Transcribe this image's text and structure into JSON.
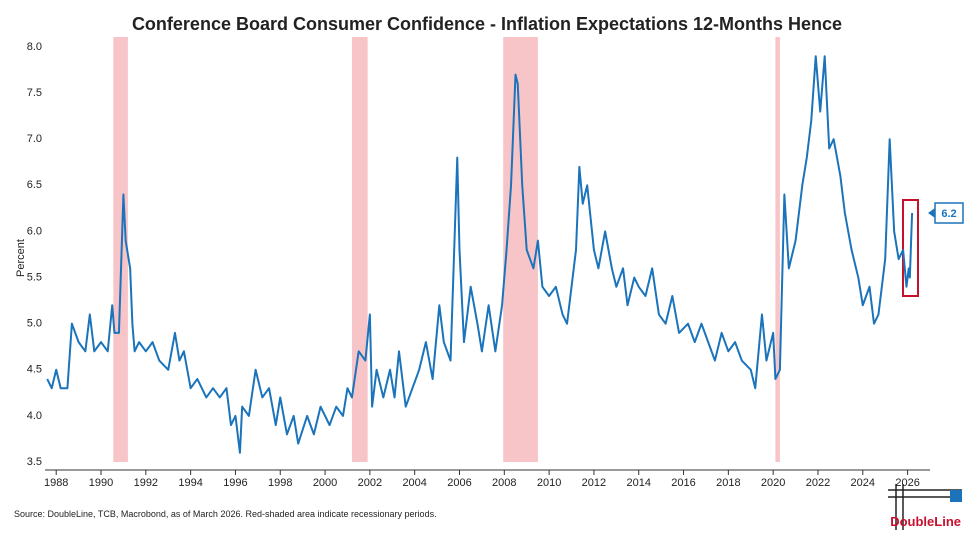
{
  "chart_data": {
    "type": "line",
    "title": "Conference Board Consumer Confidence - Inflation Expectations 12-Months Hence",
    "y_label": "Percent",
    "source": "Source: DoubleLine, TCB, Macrobond, as of March 2026. Red-shaded area indicate recessionary periods.",
    "brand": "DoubleLine",
    "xlim": [
      1987.5,
      2027
    ],
    "ylim": [
      3.5,
      8.0
    ],
    "xticks": [
      1988,
      1990,
      1992,
      1994,
      1996,
      1998,
      2000,
      2002,
      2004,
      2006,
      2008,
      2010,
      2012,
      2014,
      2016,
      2018,
      2020,
      2022,
      2024,
      2026
    ],
    "yticks": [
      3.5,
      {
        "value": 4,
        "label": "4.0"
      },
      4.5,
      {
        "value": 5,
        "label": "5.0"
      },
      5.5,
      {
        "value": 6,
        "label": "6.0"
      },
      6.5,
      {
        "value": 7,
        "label": "7.0"
      },
      7.5,
      {
        "value": 8,
        "label": "8.0"
      }
    ],
    "recession_color": "#f7c5c8",
    "recessions": [
      [
        1990.55,
        1991.2
      ],
      [
        2001.2,
        2001.9
      ],
      [
        2007.95,
        2009.5
      ],
      [
        2020.1,
        2020.3
      ]
    ],
    "x": [
      1987.6,
      1987.8,
      1988.0,
      1988.2,
      1988.5,
      1988.7,
      1989.0,
      1989.3,
      1989.5,
      1989.7,
      1990.0,
      1990.3,
      1990.5,
      1990.6,
      1990.8,
      1991.0,
      1991.1,
      1991.3,
      1991.4,
      1991.5,
      1991.7,
      1992.0,
      1992.3,
      1992.6,
      1993.0,
      1993.3,
      1993.5,
      1993.7,
      1994.0,
      1994.3,
      1994.7,
      1995.0,
      1995.3,
      1995.6,
      1995.8,
      1996.0,
      1996.2,
      1996.3,
      1996.6,
      1996.9,
      1997.2,
      1997.5,
      1997.8,
      1998.0,
      1998.3,
      1998.6,
      1998.8,
      1999.2,
      1999.5,
      1999.8,
      2000.2,
      2000.5,
      2000.8,
      2001.0,
      2001.2,
      2001.5,
      2001.8,
      2002.0,
      2002.1,
      2002.3,
      2002.6,
      2002.9,
      2003.1,
      2003.3,
      2003.6,
      2003.9,
      2004.2,
      2004.5,
      2004.8,
      2005.1,
      2005.3,
      2005.6,
      2005.9,
      2006.0,
      2006.2,
      2006.5,
      2006.8,
      2007.0,
      2007.3,
      2007.6,
      2007.9,
      2008.1,
      2008.3,
      2008.5,
      2008.6,
      2008.8,
      2009.0,
      2009.3,
      2009.5,
      2009.7,
      2010.0,
      2010.3,
      2010.6,
      2010.8,
      2011.0,
      2011.2,
      2011.35,
      2011.5,
      2011.7,
      2012.0,
      2012.2,
      2012.5,
      2012.8,
      2013.0,
      2013.3,
      2013.5,
      2013.8,
      2014.0,
      2014.3,
      2014.6,
      2014.9,
      2015.2,
      2015.5,
      2015.8,
      2016.2,
      2016.5,
      2016.8,
      2017.1,
      2017.4,
      2017.7,
      2018.0,
      2018.3,
      2018.6,
      2019.0,
      2019.2,
      2019.5,
      2019.7,
      2020.0,
      2020.1,
      2020.3,
      2020.5,
      2020.7,
      2021.0,
      2021.3,
      2021.5,
      2021.7,
      2021.9,
      2022.1,
      2022.3,
      2022.5,
      2022.7,
      2023.0,
      2023.2,
      2023.5,
      2023.8,
      2024.0,
      2024.3,
      2024.5,
      2024.7,
      2025.0,
      2025.2,
      2025.4,
      2025.6,
      2025.8,
      2025.95,
      2026.05,
      2026.1,
      2026.2
    ],
    "series": [
      {
        "color": "#1b74bb",
        "values": [
          4.4,
          4.3,
          4.5,
          4.3,
          4.3,
          5.0,
          4.8,
          4.7,
          5.1,
          4.7,
          4.8,
          4.7,
          5.2,
          4.9,
          4.9,
          6.4,
          5.9,
          5.6,
          5.0,
          4.7,
          4.8,
          4.7,
          4.8,
          4.6,
          4.5,
          4.9,
          4.6,
          4.7,
          4.3,
          4.4,
          4.2,
          4.3,
          4.2,
          4.3,
          3.9,
          4.0,
          3.6,
          4.1,
          4.0,
          4.5,
          4.2,
          4.3,
          3.9,
          4.2,
          3.8,
          4.0,
          3.7,
          4.0,
          3.8,
          4.1,
          3.9,
          4.1,
          4.0,
          4.3,
          4.2,
          4.7,
          4.6,
          5.1,
          4.1,
          4.5,
          4.2,
          4.5,
          4.2,
          4.7,
          4.1,
          4.3,
          4.5,
          4.8,
          4.4,
          5.2,
          4.8,
          4.6,
          6.8,
          5.8,
          4.8,
          5.4,
          5.0,
          4.7,
          5.2,
          4.7,
          5.2,
          5.8,
          6.5,
          7.7,
          7.6,
          6.5,
          5.8,
          5.6,
          5.9,
          5.4,
          5.3,
          5.4,
          5.1,
          5.0,
          5.4,
          5.8,
          6.7,
          6.3,
          6.5,
          5.8,
          5.6,
          6.0,
          5.6,
          5.4,
          5.6,
          5.2,
          5.5,
          5.4,
          5.3,
          5.6,
          5.1,
          5.0,
          5.3,
          4.9,
          5.0,
          4.8,
          5.0,
          4.8,
          4.6,
          4.9,
          4.7,
          4.8,
          4.6,
          4.5,
          4.3,
          5.1,
          4.6,
          4.9,
          4.4,
          4.5,
          6.4,
          5.6,
          5.9,
          6.5,
          6.8,
          7.2,
          7.9,
          7.3,
          7.9,
          6.9,
          7.0,
          6.6,
          6.2,
          5.8,
          5.5,
          5.2,
          5.4,
          5.0,
          5.1,
          5.7,
          7.0,
          6.0,
          5.7,
          5.8,
          5.4,
          5.6,
          5.5,
          6.2
        ]
      }
    ]
  }
}
